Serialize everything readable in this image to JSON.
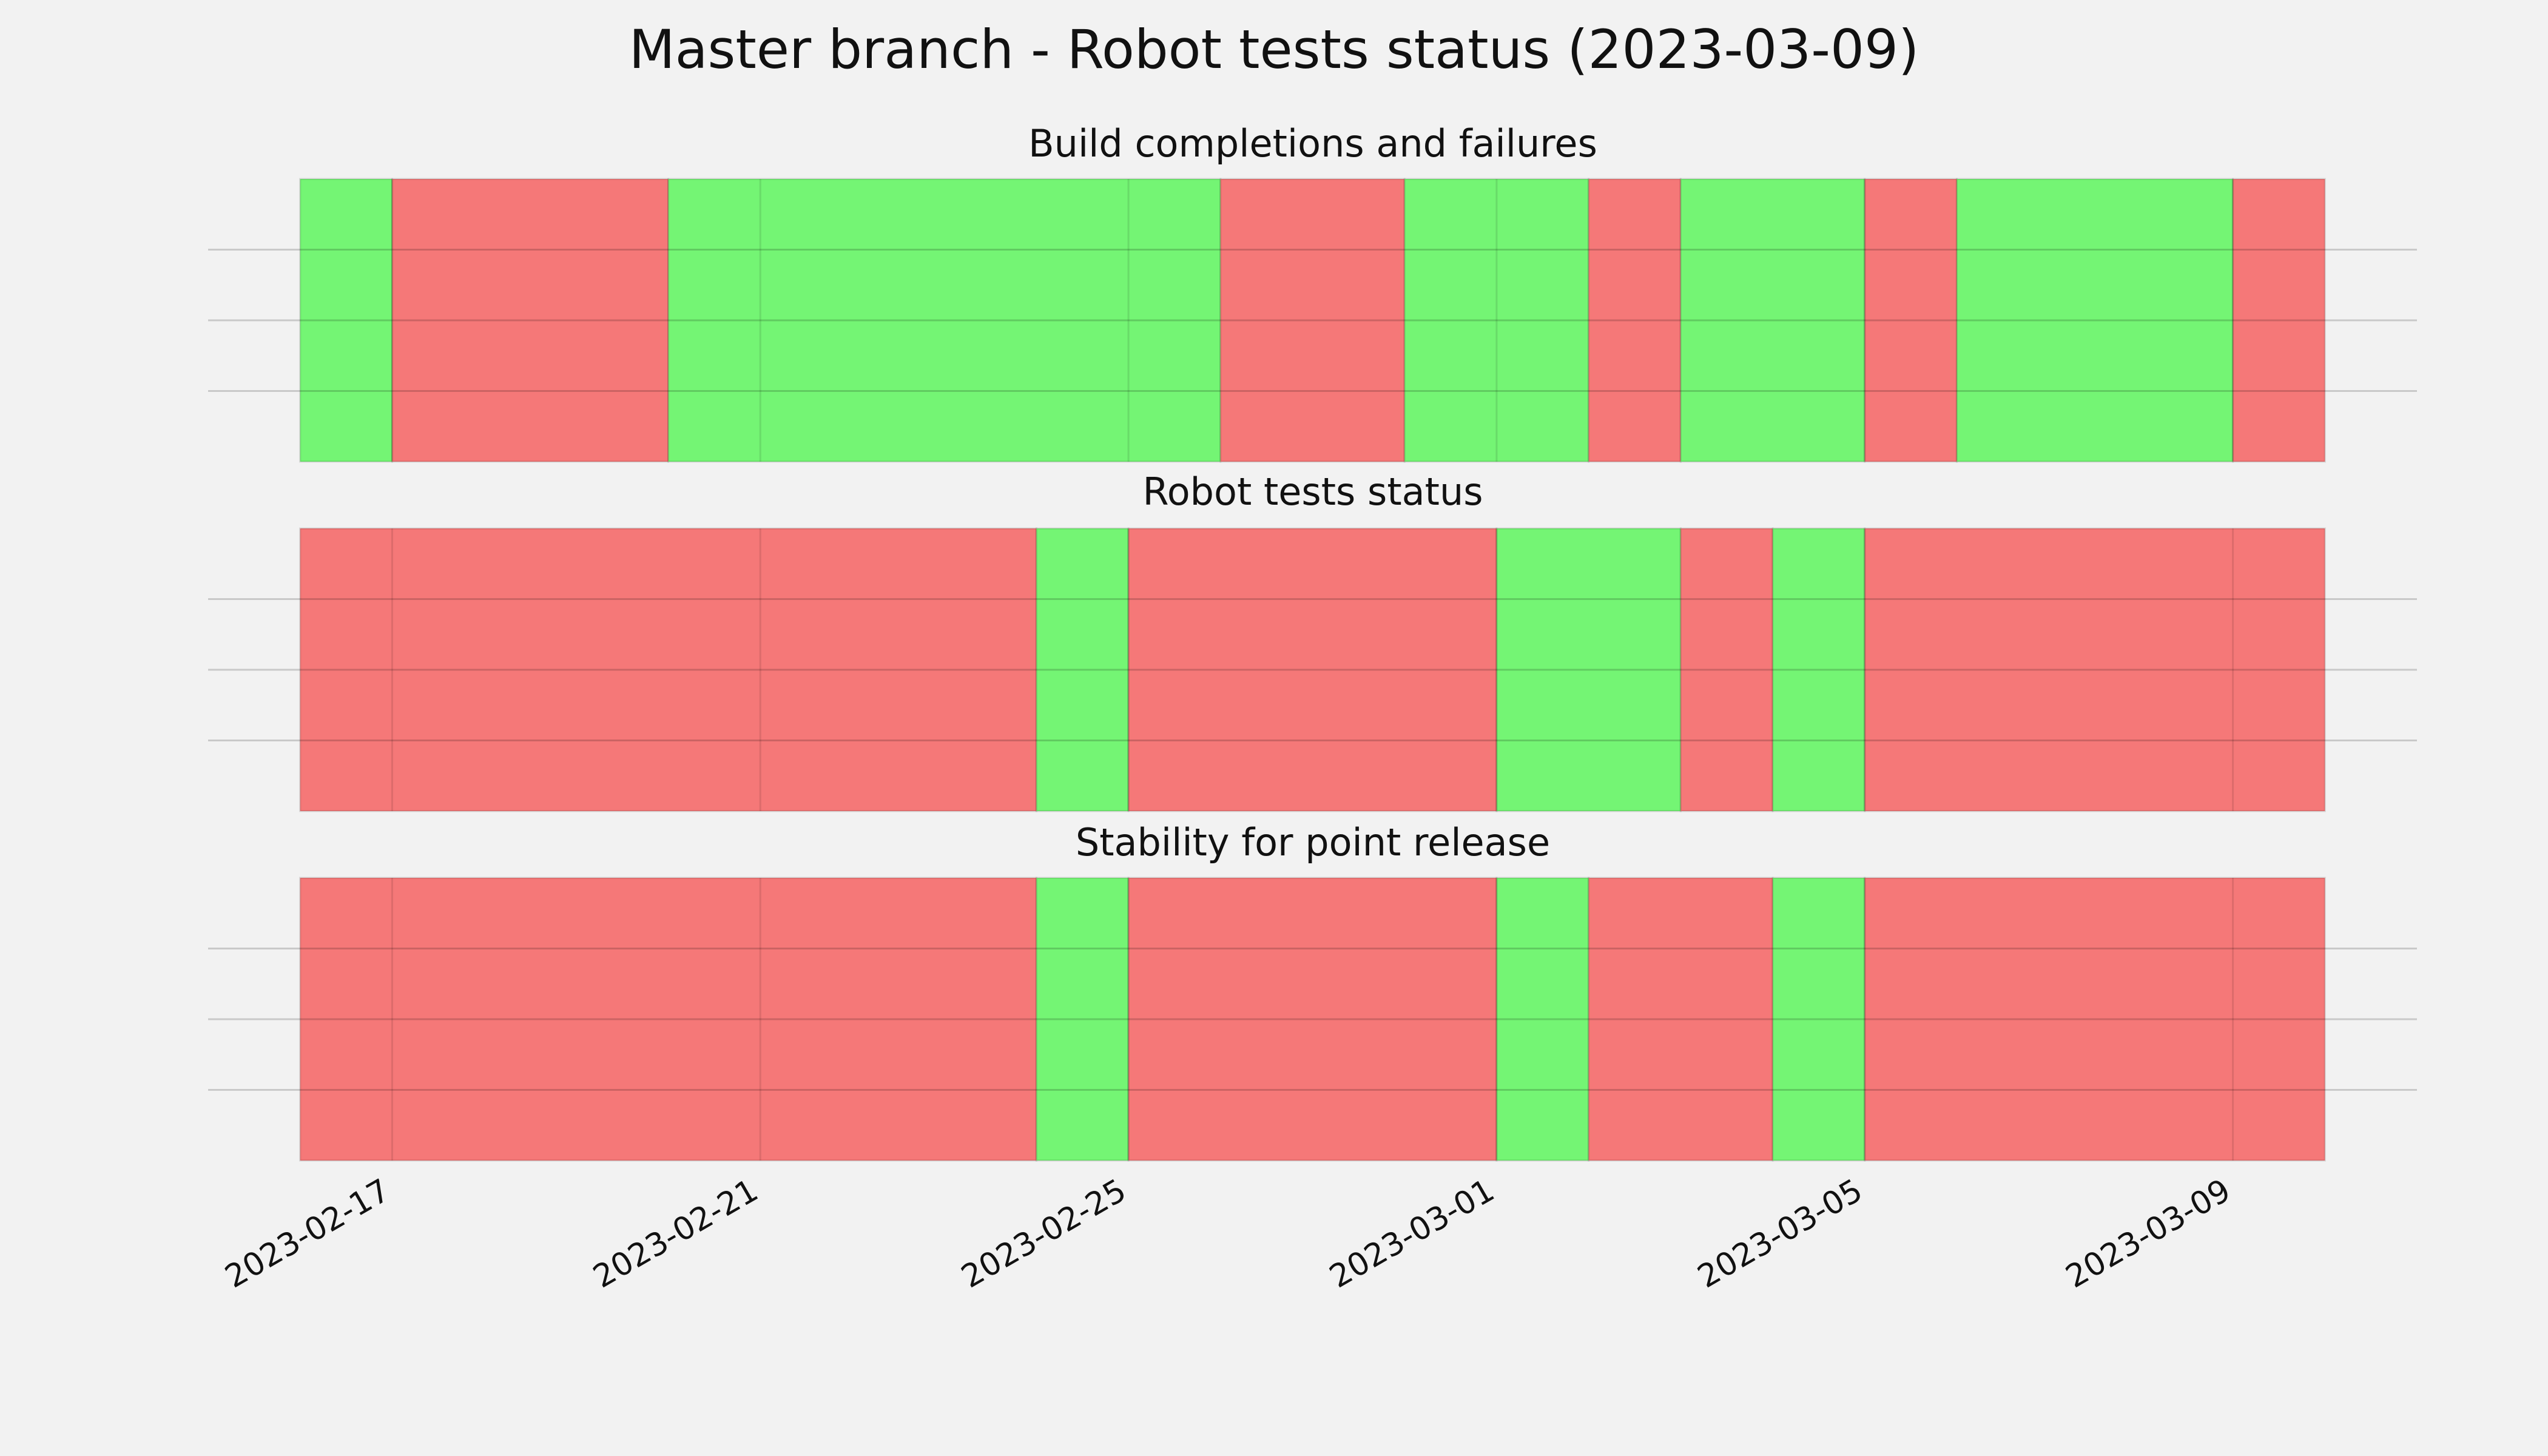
{
  "title": "Master branch - Robot tests status (2023-03-09)",
  "chart_data": [
    {
      "type": "timeline",
      "title": "Build completions and failures",
      "xlim": [
        "2023-02-15",
        "2023-03-11"
      ],
      "ylim": [
        0,
        1
      ],
      "xticks": [
        "2023-02-17",
        "2023-02-21",
        "2023-02-25",
        "2023-03-01",
        "2023-03-05",
        "2023-03-09"
      ],
      "yticks": [
        0.25,
        0.5,
        0.75
      ],
      "grid": true,
      "segments": [
        {
          "start": "2023-02-16",
          "end": "2023-02-17",
          "color": "#74f574"
        },
        {
          "start": "2023-02-17",
          "end": "2023-02-20",
          "color": "#f57878"
        },
        {
          "start": "2023-02-20",
          "end": "2023-02-26",
          "color": "#74f574"
        },
        {
          "start": "2023-02-26",
          "end": "2023-02-28",
          "color": "#f57878"
        },
        {
          "start": "2023-02-28",
          "end": "2023-03-02",
          "color": "#74f574"
        },
        {
          "start": "2023-03-02",
          "end": "2023-03-03",
          "color": "#f57878"
        },
        {
          "start": "2023-03-03",
          "end": "2023-03-05",
          "color": "#74f574"
        },
        {
          "start": "2023-03-05",
          "end": "2023-03-06",
          "color": "#f57878"
        },
        {
          "start": "2023-03-06",
          "end": "2023-03-09",
          "color": "#74f574"
        },
        {
          "start": "2023-03-09",
          "end": "2023-03-10",
          "color": "#f57878"
        }
      ]
    },
    {
      "type": "timeline",
      "title": "Robot tests status",
      "xlim": [
        "2023-02-15",
        "2023-03-11"
      ],
      "ylim": [
        0,
        1
      ],
      "xticks": [
        "2023-02-17",
        "2023-02-21",
        "2023-02-25",
        "2023-03-01",
        "2023-03-05",
        "2023-03-09"
      ],
      "yticks": [
        0.25,
        0.5,
        0.75
      ],
      "grid": true,
      "segments": [
        {
          "start": "2023-02-16",
          "end": "2023-02-24",
          "color": "#f57878"
        },
        {
          "start": "2023-02-24",
          "end": "2023-02-25",
          "color": "#74f574"
        },
        {
          "start": "2023-02-25",
          "end": "2023-03-01",
          "color": "#f57878"
        },
        {
          "start": "2023-03-01",
          "end": "2023-03-03",
          "color": "#74f574"
        },
        {
          "start": "2023-03-03",
          "end": "2023-03-04",
          "color": "#f57878"
        },
        {
          "start": "2023-03-04",
          "end": "2023-03-05",
          "color": "#74f574"
        },
        {
          "start": "2023-03-05",
          "end": "2023-03-10",
          "color": "#f57878"
        }
      ]
    },
    {
      "type": "timeline",
      "title": "Stability for point release",
      "xlim": [
        "2023-02-15",
        "2023-03-11"
      ],
      "ylim": [
        0,
        1
      ],
      "xticks": [
        "2023-02-17",
        "2023-02-21",
        "2023-02-25",
        "2023-03-01",
        "2023-03-05",
        "2023-03-09"
      ],
      "yticks": [
        0.25,
        0.5,
        0.75
      ],
      "grid": true,
      "show_xtick_labels": true,
      "segments": [
        {
          "start": "2023-02-16",
          "end": "2023-02-24",
          "color": "#f57878"
        },
        {
          "start": "2023-02-24",
          "end": "2023-02-25",
          "color": "#74f574"
        },
        {
          "start": "2023-02-25",
          "end": "2023-03-01",
          "color": "#f57878"
        },
        {
          "start": "2023-03-01",
          "end": "2023-03-02",
          "color": "#74f574"
        },
        {
          "start": "2023-03-02",
          "end": "2023-03-04",
          "color": "#f57878"
        },
        {
          "start": "2023-03-04",
          "end": "2023-03-05",
          "color": "#74f574"
        },
        {
          "start": "2023-03-05",
          "end": "2023-03-10",
          "color": "#f57878"
        }
      ]
    }
  ]
}
